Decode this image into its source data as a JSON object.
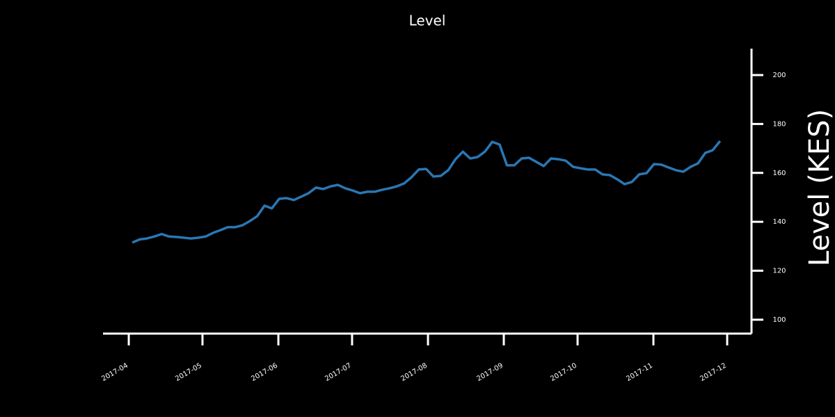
{
  "chart_data": {
    "type": "line",
    "title": "Level",
    "y_label": "Level (KES)",
    "series": [
      {
        "name": "Level",
        "color": "#2a77b4",
        "values": [
          131.5,
          132.8,
          133.2,
          134,
          135,
          134,
          133.8,
          133.5,
          133.2,
          133.5,
          134,
          135.5,
          136.6,
          137.8,
          137.8,
          138.6,
          140.3,
          142.3,
          146.6,
          145.5,
          149.4,
          149.7,
          148.9,
          150.3,
          151.7,
          154,
          153.4,
          154.5,
          155.1,
          153.7,
          152.8,
          151.7,
          152.3,
          152.3,
          153.1,
          153.7,
          154.5,
          155.7,
          158.2,
          161.4,
          161.6,
          158.5,
          158.8,
          161.1,
          165.6,
          168.7,
          165.9,
          166.5,
          168.7,
          172.7,
          171.6,
          163.1,
          163.1,
          165.9,
          166.2,
          164.5,
          162.8,
          165.9,
          165.6,
          165,
          162.5,
          161.9,
          161.4,
          161.4,
          159.4,
          159.1,
          157.4,
          155.4,
          156.3,
          159.4,
          159.9,
          163.6,
          163.4,
          162.2,
          161.1,
          160.5,
          162.5,
          163.9,
          168.2,
          169.3,
          173
        ]
      }
    ],
    "xlim": [
      -3.98,
      84.28
    ],
    "xticks": [
      {
        "value": -0.47,
        "label": "2017-04"
      },
      {
        "value": 9.56,
        "label": "2017-05"
      },
      {
        "value": 19.89,
        "label": "2017-06"
      },
      {
        "value": 29.92,
        "label": "2017-07"
      },
      {
        "value": 40.25,
        "label": "2017-08"
      },
      {
        "value": 50.57,
        "label": "2017-09"
      },
      {
        "value": 60.61,
        "label": "2017-10"
      },
      {
        "value": 70.93,
        "label": "2017-11"
      },
      {
        "value": 80.97,
        "label": "2017-12"
      }
    ],
    "ylim": [
      94.3,
      210.8
    ],
    "yticks": [
      100,
      120,
      140,
      160,
      180,
      200
    ],
    "background": "#000000",
    "axis_color": "#ffffff"
  }
}
